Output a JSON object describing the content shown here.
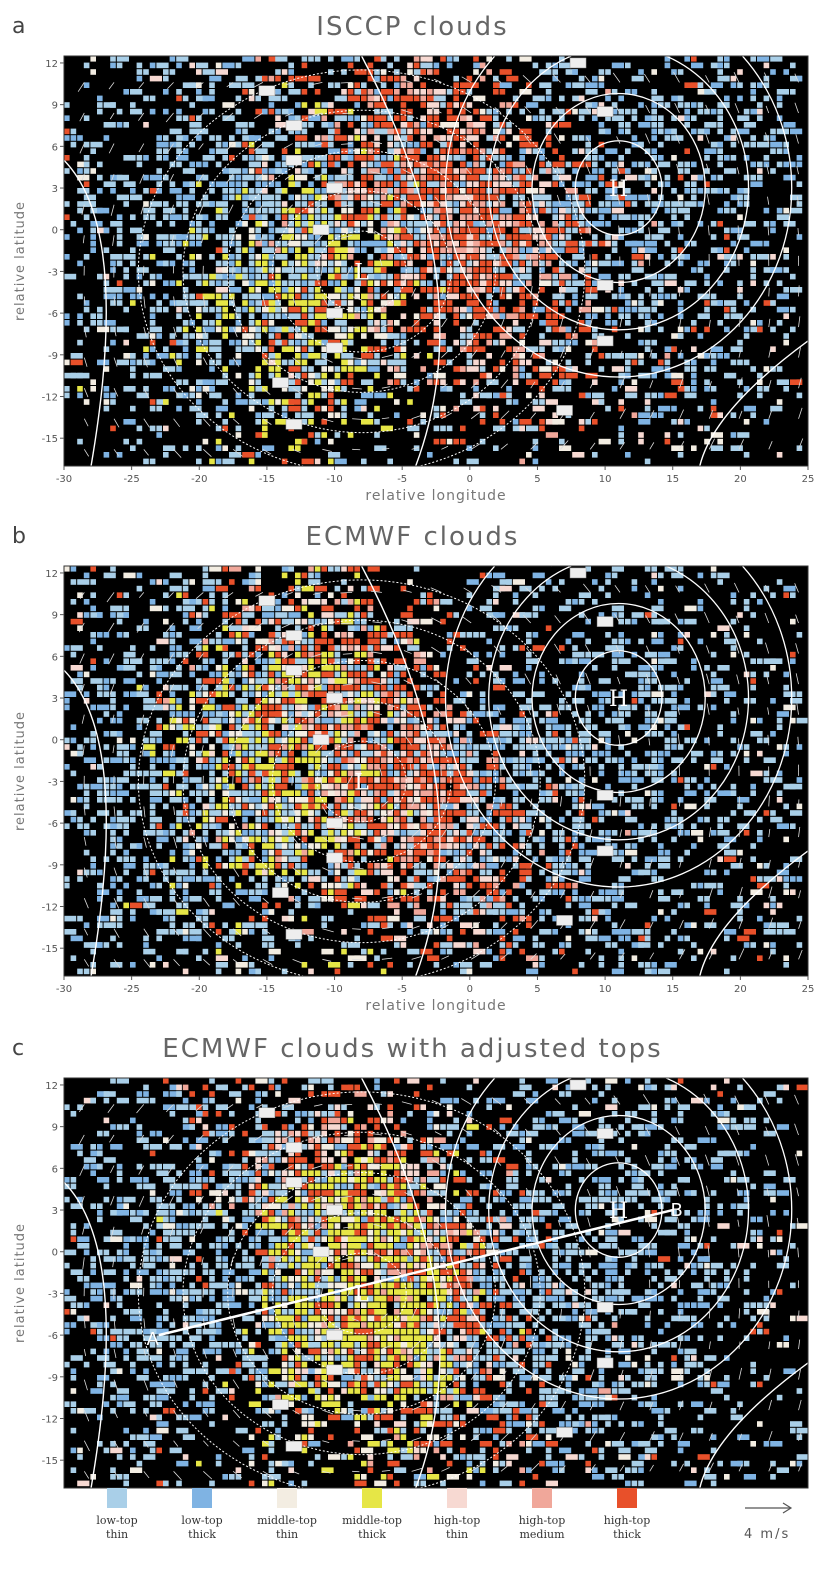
{
  "colors": {
    "background": "#000000",
    "low_thin": "#a9cfe8",
    "low_thick": "#7fb3e3",
    "middle_thin": "#f3ede2",
    "middle_thick": "#e6e646",
    "high_thin": "#f7d9d2",
    "high_medium": "#f0a79a",
    "high_thick": "#e8502a",
    "contour": "#ffffff"
  },
  "panels": [
    {
      "letter": "a",
      "title": "ISCCP clouds",
      "xlabel": "relative longitude",
      "ylabel": "relative latitude"
    },
    {
      "letter": "b",
      "title": "ECMWF clouds",
      "xlabel": "relative longitude",
      "ylabel": "relative latitude"
    },
    {
      "letter": "c",
      "title": "ECMWF clouds with adjusted tops",
      "xlabel": "",
      "ylabel": "relative latitude"
    }
  ],
  "contour_labels": {
    "low": "L",
    "high": "H",
    "section_start": "A",
    "section_end": "B"
  },
  "legend": [
    {
      "key": "low_thin",
      "line1": "low-top",
      "line2": "thin"
    },
    {
      "key": "low_thick",
      "line1": "low-top",
      "line2": "thick"
    },
    {
      "key": "middle_thin",
      "line1": "middle-top",
      "line2": "thin"
    },
    {
      "key": "middle_thick",
      "line1": "middle-top",
      "line2": "thick"
    },
    {
      "key": "high_thin",
      "line1": "high-top",
      "line2": "thin"
    },
    {
      "key": "high_medium",
      "line1": "high-top",
      "line2": "medium"
    },
    {
      "key": "high_thick",
      "line1": "high-top",
      "line2": "thick"
    }
  ],
  "wind_scale": "4 m/s",
  "chart_data": [
    {
      "type": "heatmap",
      "title": "ISCCP clouds",
      "xlabel": "relative longitude",
      "ylabel": "relative latitude",
      "xlim": [
        -30,
        25
      ],
      "ylim": [
        -17,
        12.5
      ],
      "xticks": [
        -30,
        -25,
        -20,
        -15,
        -10,
        -5,
        0,
        5,
        10,
        15,
        20,
        25
      ],
      "yticks": [
        12,
        9,
        6,
        3,
        0,
        -3,
        -6,
        -9,
        -12,
        -15
      ],
      "high_cloud_center": [
        -1,
        1
      ],
      "middle_cloud_center": [
        -13,
        -6
      ],
      "low_cloud_centers": [
        [
          -18,
          0
        ],
        [
          15,
          3
        ]
      ],
      "low_pressure_center": [
        -8,
        -3
      ],
      "high_pressure_center": [
        11,
        3
      ],
      "categories": [
        "low-top thin",
        "low-top thick",
        "middle-top thin",
        "middle-top thick",
        "high-top thin",
        "high-top medium",
        "high-top thick"
      ]
    },
    {
      "type": "heatmap",
      "title": "ECMWF clouds",
      "xlabel": "relative longitude",
      "ylabel": "relative latitude",
      "xlim": [
        -30,
        25
      ],
      "ylim": [
        -17,
        12.5
      ],
      "xticks": [
        -30,
        -25,
        -20,
        -15,
        -10,
        -5,
        0,
        5,
        10,
        15,
        20,
        25
      ],
      "yticks": [
        12,
        9,
        6,
        3,
        0,
        -3,
        -6,
        -9,
        -12,
        -15
      ],
      "high_cloud_center": [
        -6,
        -2
      ],
      "middle_cloud_center": [
        -14,
        -2
      ],
      "low_cloud_centers": [
        [
          -22,
          -3
        ],
        [
          10,
          -3
        ]
      ],
      "low_pressure_center": [
        -8,
        -3
      ],
      "high_pressure_center": [
        11,
        3
      ],
      "categories": [
        "low-top thin",
        "low-top thick",
        "middle-top thin",
        "middle-top thick",
        "high-top thin",
        "high-top medium",
        "high-top thick"
      ]
    },
    {
      "type": "heatmap",
      "title": "ECMWF clouds with adjusted tops",
      "xlabel": "",
      "ylabel": "relative latitude",
      "xlim": [
        -30,
        25
      ],
      "ylim": [
        -17,
        12.5
      ],
      "xticks": [],
      "yticks": [
        12,
        9,
        6,
        3,
        0,
        -3,
        -6,
        -9,
        -12,
        -15
      ],
      "high_cloud_center": [
        -6,
        -1
      ],
      "middle_cloud_center": [
        -9,
        -5
      ],
      "low_cloud_centers": [
        [
          -22,
          -2
        ],
        [
          10,
          -2
        ]
      ],
      "low_pressure_center": [
        -8,
        -3
      ],
      "high_pressure_center": [
        11,
        3
      ],
      "cross_section": {
        "A": [
          -23,
          -6
        ],
        "B": [
          15,
          3
        ]
      },
      "categories": [
        "low-top thin",
        "low-top thick",
        "middle-top thin",
        "middle-top thick",
        "high-top thin",
        "high-top medium",
        "high-top thick"
      ]
    }
  ]
}
